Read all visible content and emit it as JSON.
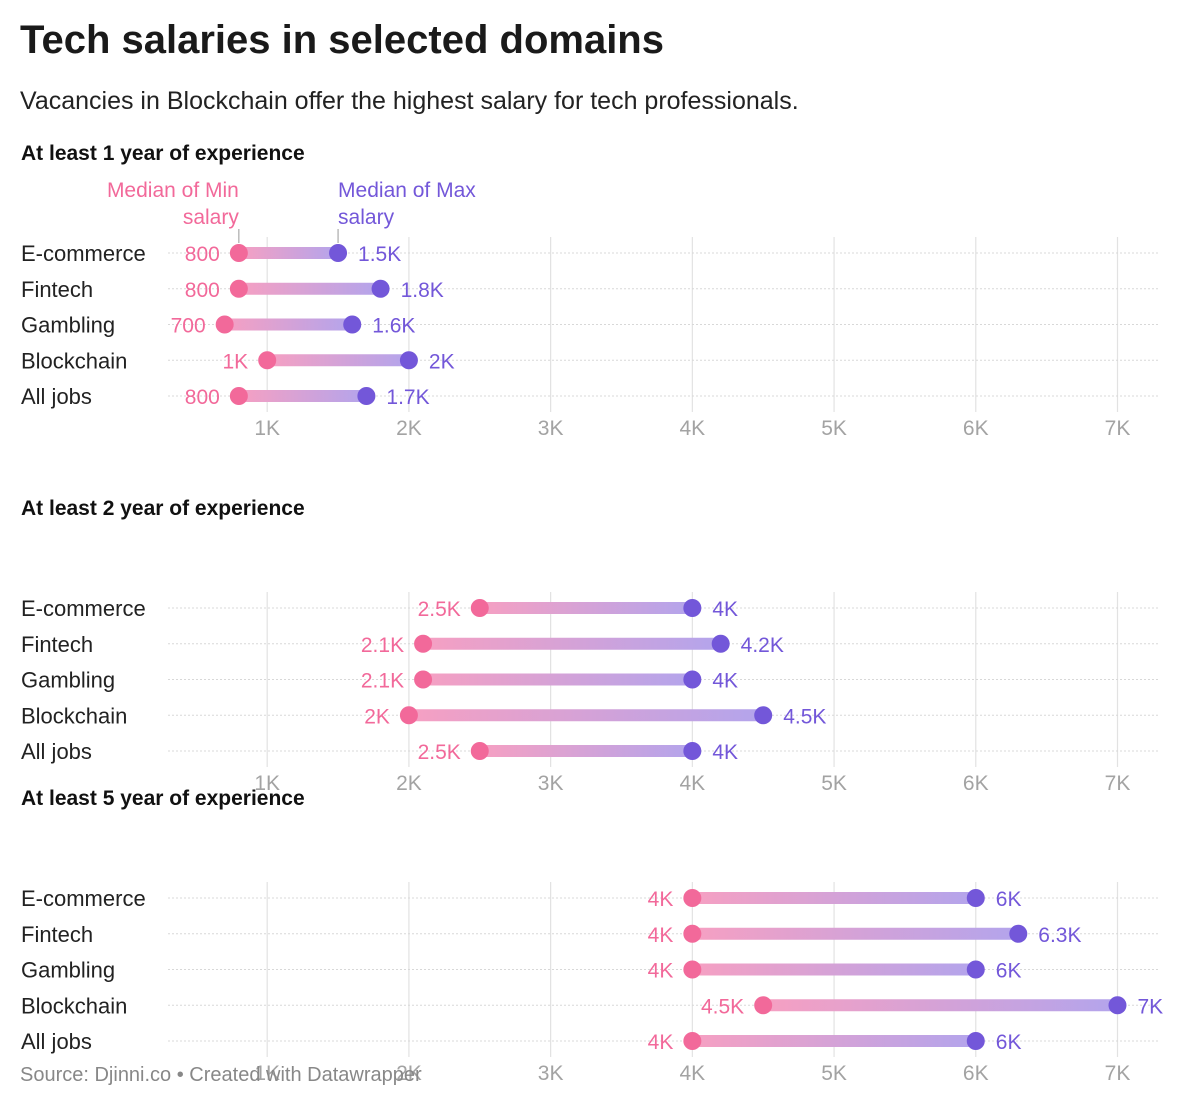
{
  "title": "Tech salaries in selected domains",
  "subtitle": "Vacancies in Blockchain offer the highest salary for tech professionals.",
  "source": "Source: Djinni.co • Created with Datawrapper",
  "colors": {
    "min": "#f2699a",
    "max": "#7357d9",
    "grid": "#e2e2e2",
    "row_line": "#d8d8d8"
  },
  "legend": {
    "min": [
      "Median of Min",
      "salary"
    ],
    "max": [
      "Median of Max",
      "salary"
    ]
  },
  "chart_data": [
    {
      "type": "range",
      "title": "At least 1 year of experience",
      "categories": [
        "E-commerce",
        "Fintech",
        "Gambling",
        "Blockchain",
        "All jobs"
      ],
      "min": [
        800,
        800,
        700,
        1000,
        800
      ],
      "max": [
        1500,
        1800,
        1600,
        2000,
        1700
      ],
      "min_labels": [
        "800",
        "800",
        "700",
        "1K",
        "800"
      ],
      "max_labels": [
        "1.5K",
        "1.8K",
        "1.6K",
        "2K",
        "1.7K"
      ],
      "ticks": [
        1000,
        2000,
        3000,
        4000,
        5000,
        6000,
        7000
      ],
      "tick_labels": [
        "1K",
        "2K",
        "3K",
        "4K",
        "5K",
        "6K",
        "7K"
      ],
      "xlim": [
        300,
        7300
      ]
    },
    {
      "type": "range",
      "title": "At least 2 year of experience",
      "categories": [
        "E-commerce",
        "Fintech",
        "Gambling",
        "Blockchain",
        "All jobs"
      ],
      "min": [
        2500,
        2100,
        2100,
        2000,
        2500
      ],
      "max": [
        4000,
        4200,
        4000,
        4500,
        4000
      ],
      "min_labels": [
        "2.5K",
        "2.1K",
        "2.1K",
        "2K",
        "2.5K"
      ],
      "max_labels": [
        "4K",
        "4.2K",
        "4K",
        "4.5K",
        "4K"
      ],
      "ticks": [
        1000,
        2000,
        3000,
        4000,
        5000,
        6000,
        7000
      ],
      "tick_labels": [
        "1K",
        "2K",
        "3K",
        "4K",
        "5K",
        "6K",
        "7K"
      ],
      "xlim": [
        300,
        7300
      ]
    },
    {
      "type": "range",
      "title": "At least 5 year of experience",
      "categories": [
        "E-commerce",
        "Fintech",
        "Gambling",
        "Blockchain",
        "All jobs"
      ],
      "min": [
        4000,
        4000,
        4000,
        4500,
        4000
      ],
      "max": [
        6000,
        6300,
        6000,
        7000,
        6000
      ],
      "min_labels": [
        "4K",
        "4K",
        "4K",
        "4.5K",
        "4K"
      ],
      "max_labels": [
        "6K",
        "6.3K",
        "6K",
        "7K",
        "6K"
      ],
      "ticks": [
        1000,
        2000,
        3000,
        4000,
        5000,
        6000,
        7000
      ],
      "tick_labels": [
        "1K",
        "2K",
        "3K",
        "4K",
        "5K",
        "6K",
        "7K"
      ],
      "xlim": [
        300,
        7300
      ]
    }
  ]
}
